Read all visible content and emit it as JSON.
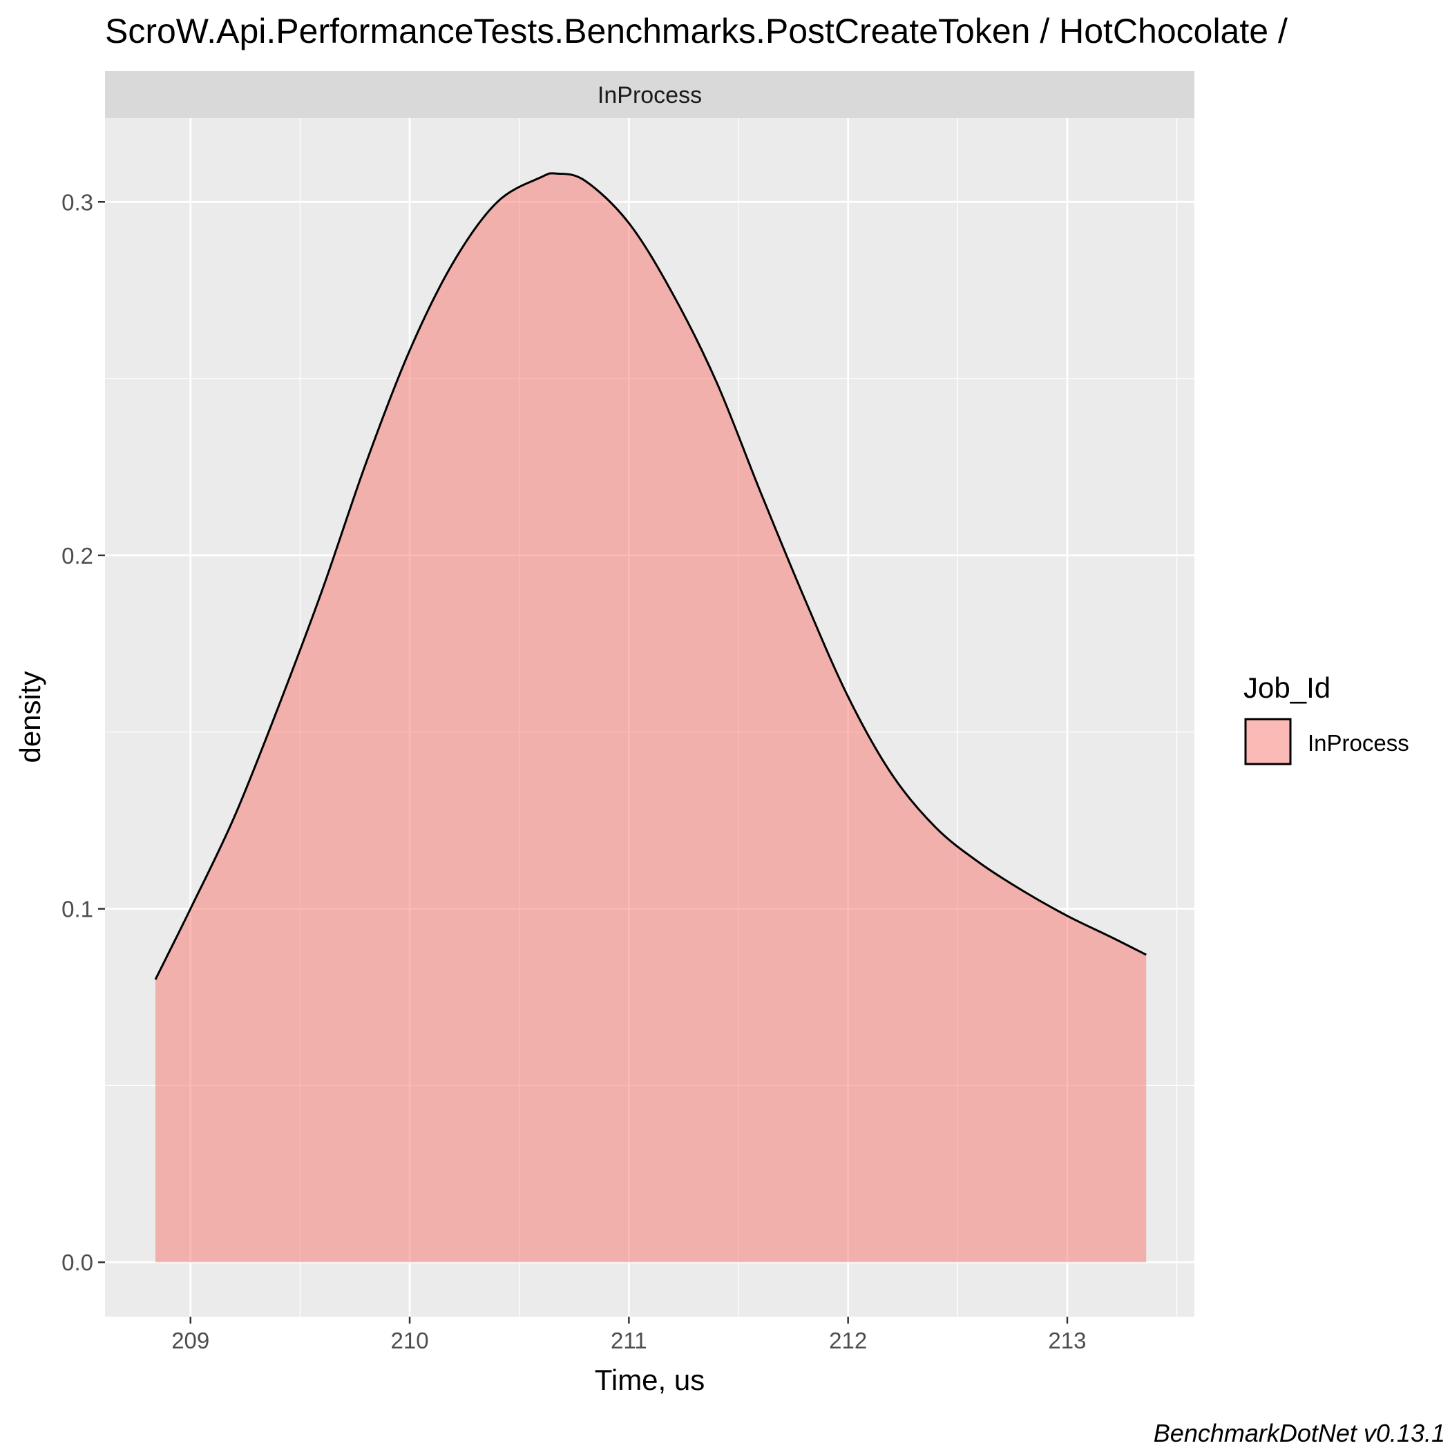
{
  "chart_data": {
    "type": "area",
    "title": "ScroW.Api.PerformanceTests.Benchmarks.PostCreateToken / HotChocolate /",
    "facet_label": "InProcess",
    "xlabel": "Time, us",
    "ylabel": "density",
    "xlim": [
      208.61,
      213.58
    ],
    "ylim": [
      -0.0154,
      0.3237
    ],
    "x_ticks": [
      209,
      210,
      211,
      212,
      213
    ],
    "x_tick_labels": [
      "209",
      "210",
      "211",
      "212",
      "213"
    ],
    "y_ticks": [
      0.0,
      0.1,
      0.2,
      0.3
    ],
    "y_tick_labels": [
      "0.0",
      "0.1",
      "0.2",
      "0.3"
    ],
    "grid": true,
    "legend": {
      "title": "Job_Id",
      "position": "right",
      "entries": [
        "InProcess"
      ]
    },
    "series": [
      {
        "name": "InProcess",
        "fill": "#f8766d",
        "fill_opacity": 0.5,
        "line_color": "#000000",
        "x": [
          208.84,
          209.0,
          209.2,
          209.4,
          209.6,
          209.8,
          210.0,
          210.2,
          210.4,
          210.6,
          210.67,
          210.8,
          211.0,
          211.2,
          211.4,
          211.6,
          211.8,
          212.0,
          212.2,
          212.4,
          212.6,
          212.8,
          213.0,
          213.2,
          213.36
        ],
        "y": [
          0.08,
          0.1,
          0.126,
          0.157,
          0.19,
          0.226,
          0.258,
          0.283,
          0.3,
          0.307,
          0.308,
          0.306,
          0.294,
          0.274,
          0.249,
          0.218,
          0.188,
          0.16,
          0.138,
          0.123,
          0.113,
          0.105,
          0.098,
          0.092,
          0.087
        ]
      }
    ]
  },
  "caption": "BenchmarkDotNet v0.13.1"
}
